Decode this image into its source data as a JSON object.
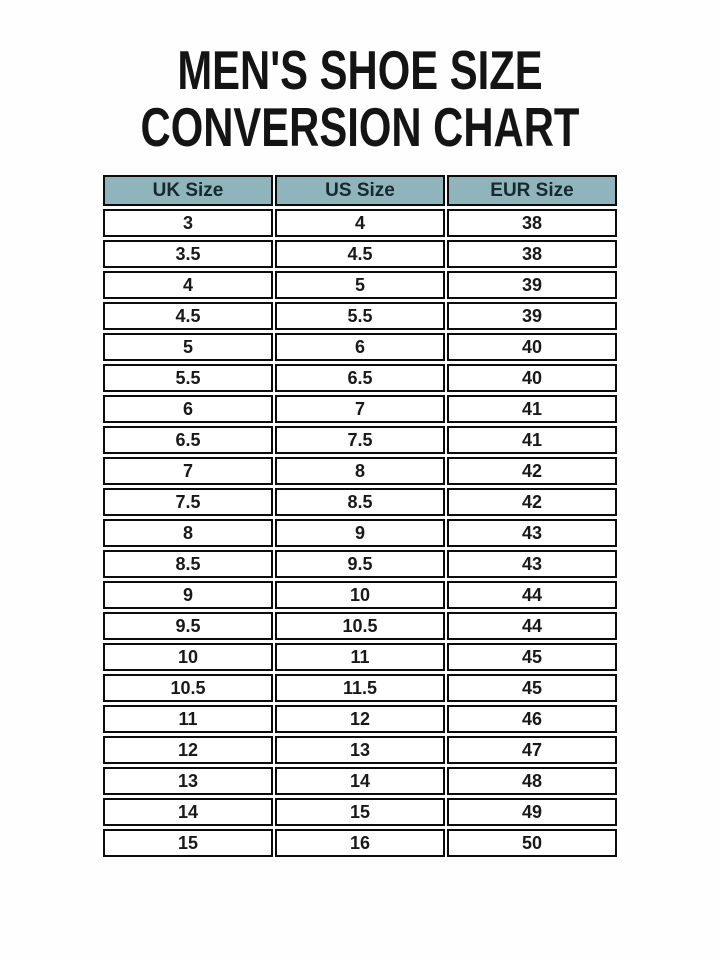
{
  "title": {
    "line1": "MEN'S SHOE SIZE",
    "line2": "CONVERSION CHART"
  },
  "chart_data": {
    "type": "table",
    "title": "MEN'S SHOE SIZE CONVERSION CHART",
    "columns": [
      "UK Size",
      "US Size",
      "EUR Size"
    ],
    "rows": [
      [
        "3",
        "4",
        "38"
      ],
      [
        "3.5",
        "4.5",
        "38"
      ],
      [
        "4",
        "5",
        "39"
      ],
      [
        "4.5",
        "5.5",
        "39"
      ],
      [
        "5",
        "6",
        "40"
      ],
      [
        "5.5",
        "6.5",
        "40"
      ],
      [
        "6",
        "7",
        "41"
      ],
      [
        "6.5",
        "7.5",
        "41"
      ],
      [
        "7",
        "8",
        "42"
      ],
      [
        "7.5",
        "8.5",
        "42"
      ],
      [
        "8",
        "9",
        "43"
      ],
      [
        "8.5",
        "9.5",
        "43"
      ],
      [
        "9",
        "10",
        "44"
      ],
      [
        "9.5",
        "10.5",
        "44"
      ],
      [
        "10",
        "11",
        "45"
      ],
      [
        "10.5",
        "11.5",
        "45"
      ],
      [
        "11",
        "12",
        "46"
      ],
      [
        "12",
        "13",
        "47"
      ],
      [
        "13",
        "14",
        "48"
      ],
      [
        "14",
        "15",
        "49"
      ],
      [
        "15",
        "16",
        "50"
      ]
    ]
  },
  "colors": {
    "header_bg": "#8fb4bc",
    "header_text": "#17282e",
    "border": "#0c0c0c",
    "body_text": "#191919",
    "page_bg": "#fefefe"
  }
}
